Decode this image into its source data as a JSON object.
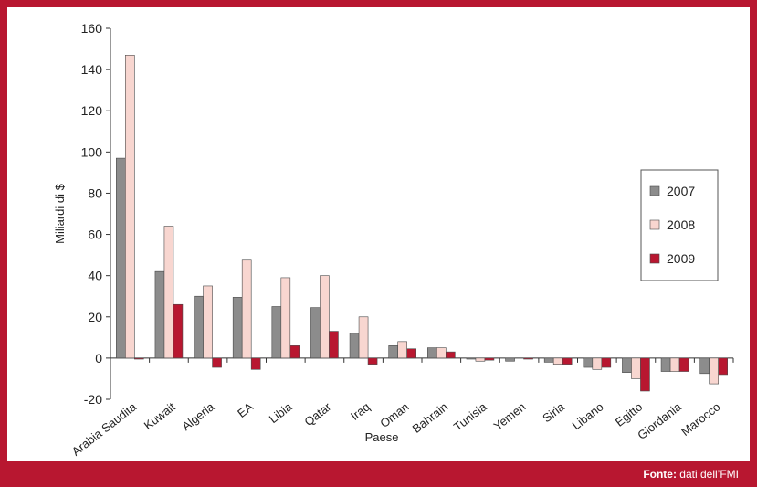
{
  "chart_data": {
    "type": "bar",
    "title": "",
    "xlabel": "Paese",
    "ylabel": "Miliardi di $",
    "ylim": [
      -20,
      160
    ],
    "yticks": [
      160,
      140,
      120,
      100,
      80,
      60,
      40,
      20,
      0,
      -20
    ],
    "categories": [
      "Arabia Saudita",
      "Kuwait",
      "Algeria",
      "EA",
      "Libia",
      "Qatar",
      "Iraq",
      "Oman",
      "Bahrain",
      "Tunisia",
      "Yemen",
      "Siria",
      "Libano",
      "Egitto",
      "Giordania",
      "Marocco"
    ],
    "series": [
      {
        "name": "2007",
        "color": "#8c8c8c",
        "values": [
          97,
          42,
          30,
          29.5,
          25,
          24.5,
          12,
          6,
          5,
          -0.5,
          -1.5,
          -2,
          -4.5,
          -7,
          -6.5,
          -7.5
        ]
      },
      {
        "name": "2008",
        "color": "#f8d6d0",
        "values": [
          147,
          64,
          35,
          47.5,
          39,
          40,
          20,
          8,
          5,
          -1.5,
          null,
          -3,
          -5.5,
          -10,
          -6.5,
          -12.5
        ]
      },
      {
        "name": "2009",
        "color": "#b81730",
        "values": [
          -0.5,
          26,
          -4.5,
          -5.5,
          6,
          13,
          -3,
          4.5,
          3,
          -1,
          -0.5,
          -3,
          -4.5,
          -16,
          -6.5,
          -8
        ]
      }
    ],
    "legend_position": "right",
    "grid": false
  },
  "source": {
    "label": "Fonte:",
    "text": " dati dell’FMI"
  },
  "colors": {
    "frame": "#b81730",
    "axis": "#333333"
  }
}
